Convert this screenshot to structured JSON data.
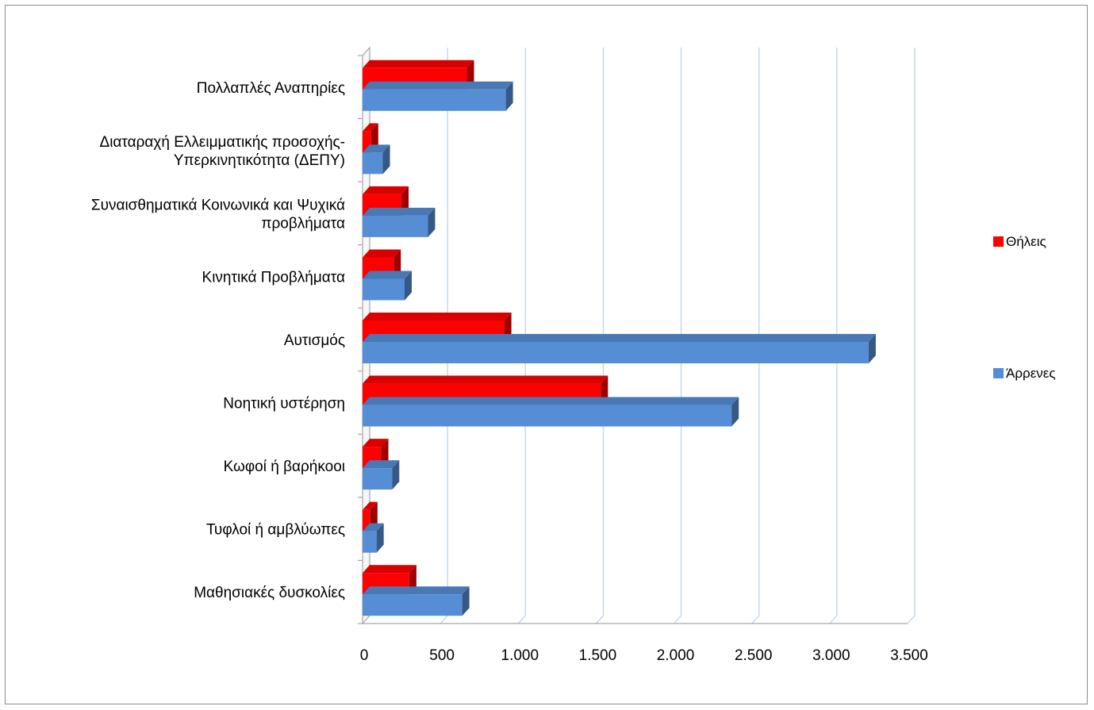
{
  "chart_data": {
    "type": "bar",
    "orientation": "horizontal",
    "style": "3d-clustered",
    "categories": [
      [
        "Μαθησιακές δυσκολίες"
      ],
      [
        "Τυφλοί ή αμβλύωπες"
      ],
      [
        "Κωφοί ή βαρήκοοι"
      ],
      [
        "Νοητική υστέρηση"
      ],
      [
        "Αυτισμός"
      ],
      [
        "Κινητικά Προβλήματα"
      ],
      [
        "Συναισθηματικά Κοινωνικά και Ψυχικά",
        "προβλήματα"
      ],
      [
        "Διαταραχή Ελλειμματικής προσοχής-",
        "Υπερκινητικότητα (ΔΕΠΥ)"
      ],
      [
        "Πολλαπλές Αναπηρίες"
      ]
    ],
    "series": [
      {
        "name": "Άρρενες",
        "color": "#558ED5",
        "values": [
          640,
          90,
          190,
          2370,
          3250,
          270,
          420,
          130,
          920
        ]
      },
      {
        "name": "Θήλεις",
        "color": "#FF0000",
        "values": [
          300,
          50,
          120,
          1530,
          910,
          200,
          250,
          55,
          670
        ]
      }
    ],
    "xlim": [
      0,
      3500
    ],
    "xticks": [
      0,
      500,
      1000,
      1500,
      2000,
      2500,
      3000,
      3500
    ],
    "xtick_labels": [
      "0",
      "500",
      "1.000",
      "1.500",
      "2.000",
      "2.500",
      "3.000",
      "3.500"
    ],
    "grid": true,
    "legend": {
      "placement": "right",
      "entries": [
        "Θήλεις",
        "Άρρενες"
      ]
    },
    "title": "",
    "xlabel": "",
    "ylabel": ""
  }
}
